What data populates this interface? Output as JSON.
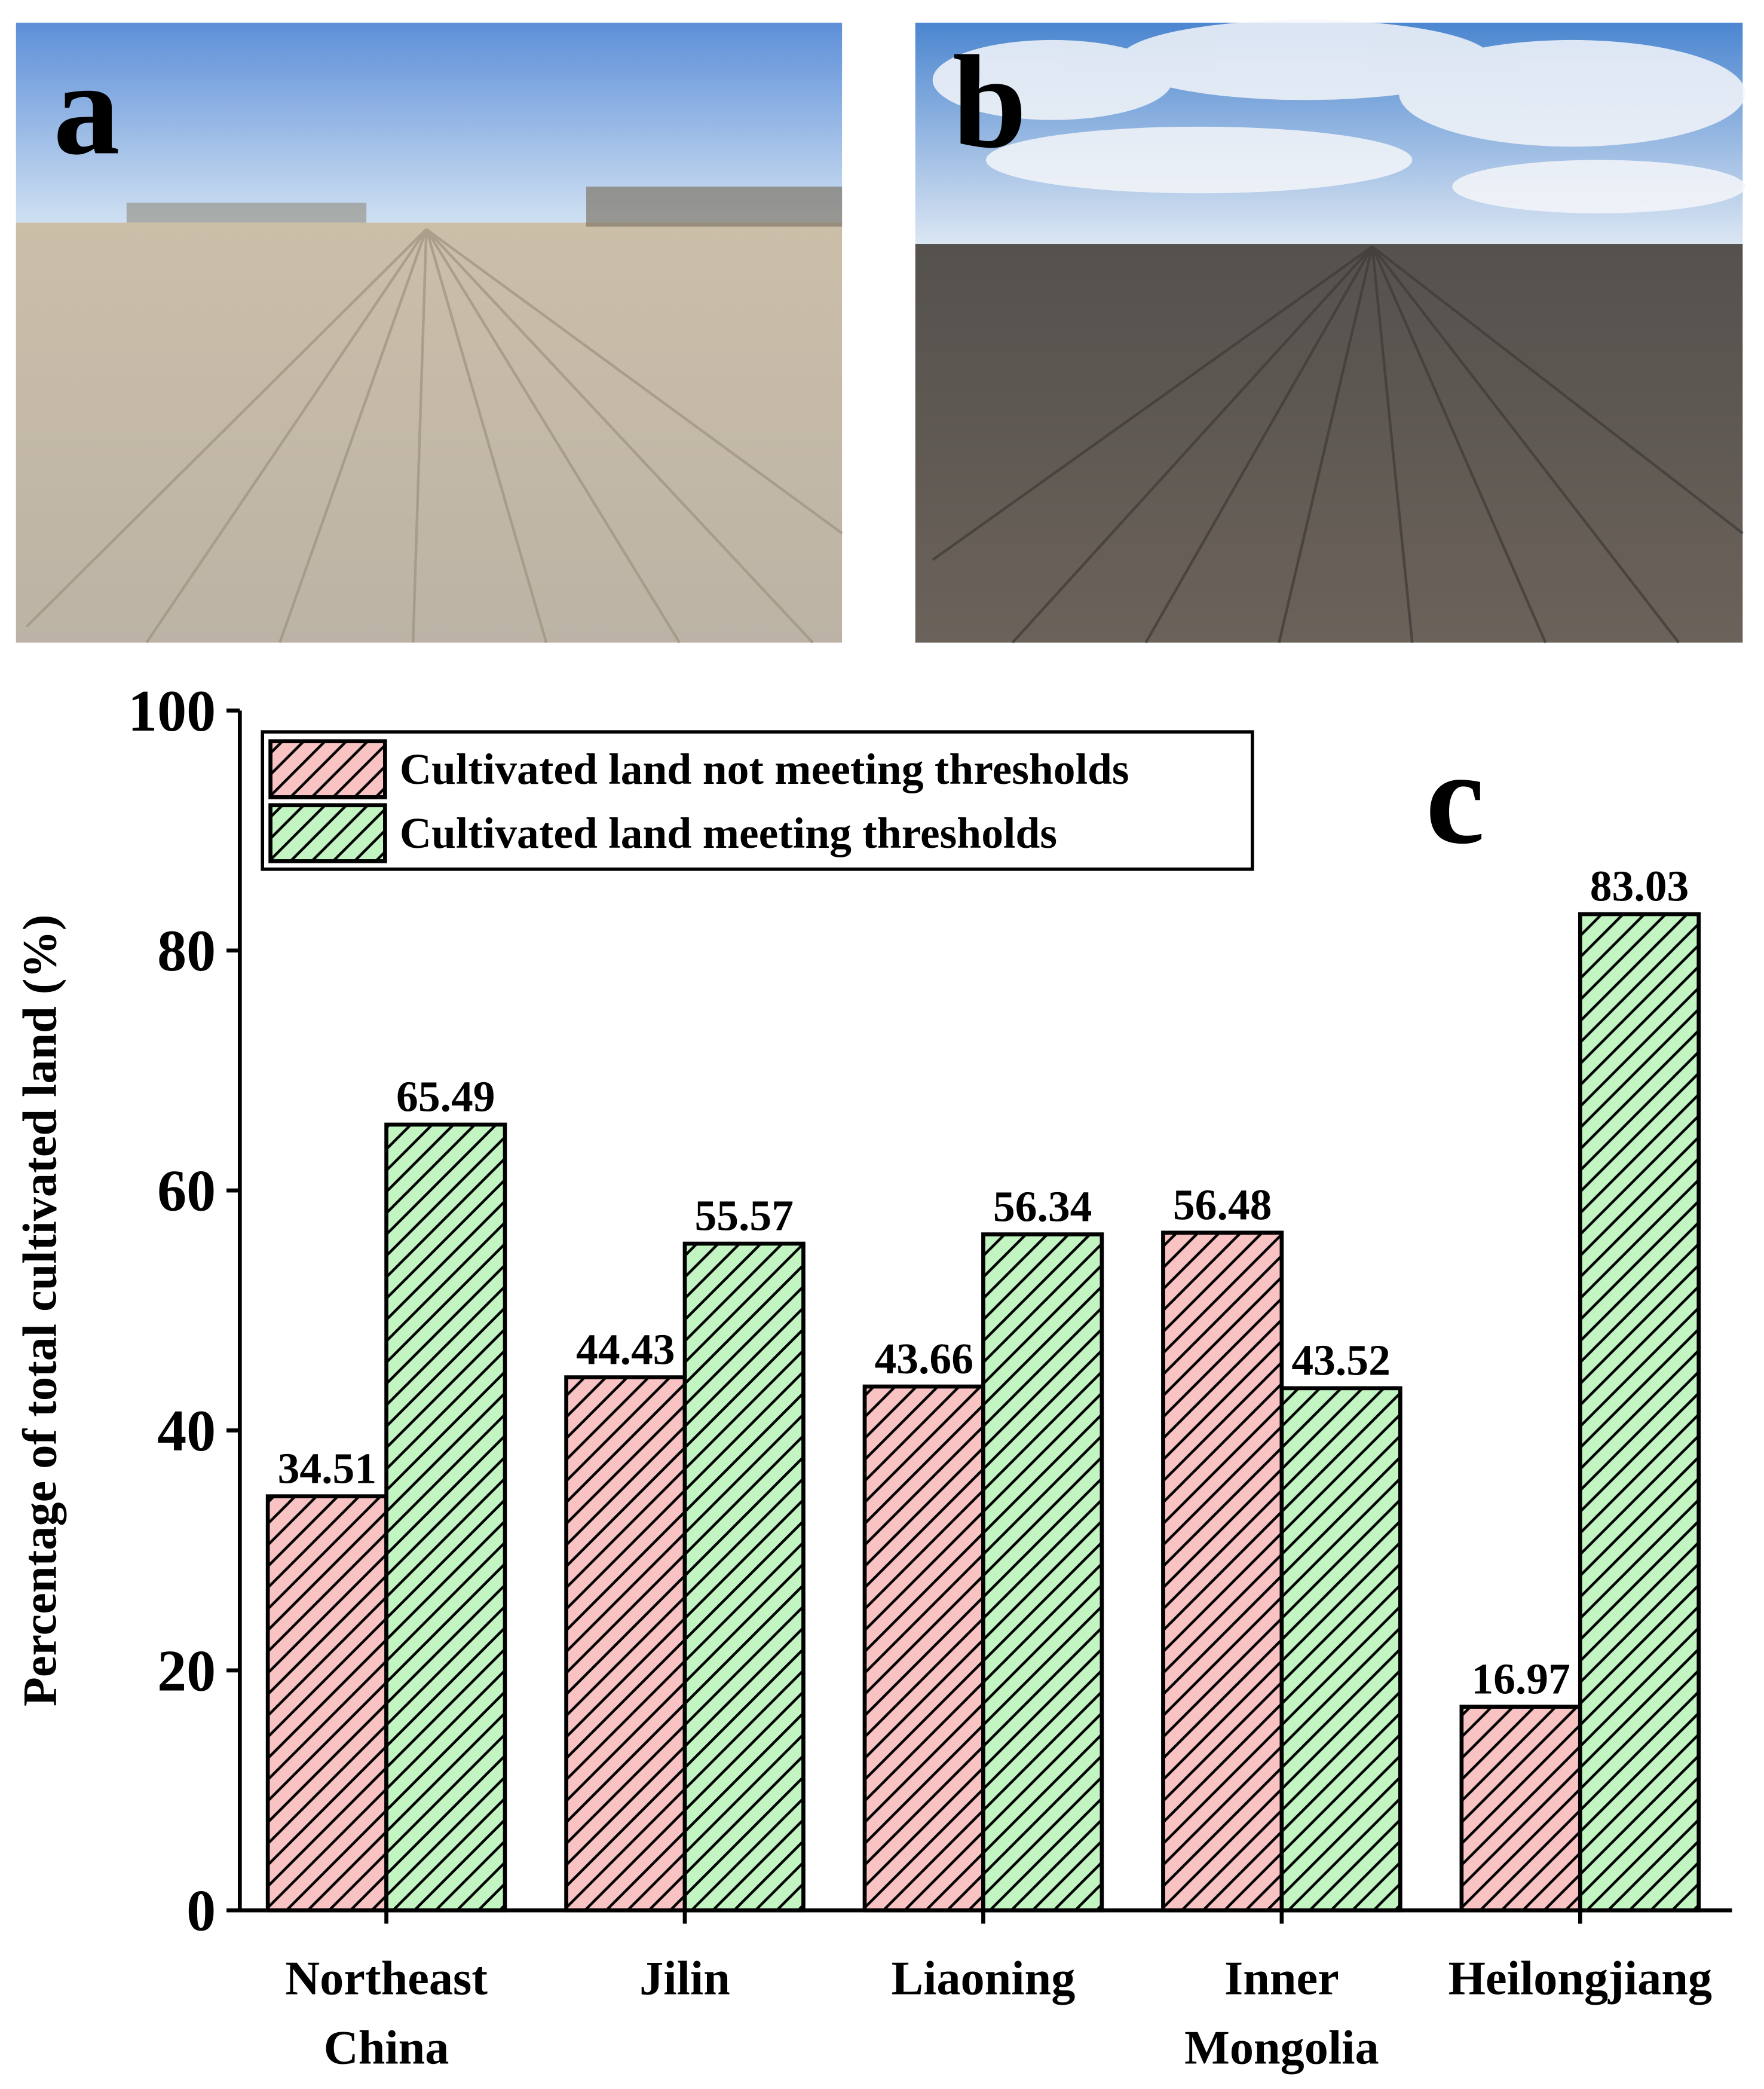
{
  "photos": [
    {
      "label": "a"
    },
    {
      "label": "b"
    }
  ],
  "chart_data": {
    "type": "bar",
    "panel_label": "c",
    "y_label": "Percentage of total cultivated land (%)",
    "categories": [
      "Northeast China",
      "Jilin",
      "Liaoning",
      "Inner Mongolia",
      "Heilongjiang"
    ],
    "series": [
      {
        "name": "Cultivated land not meeting thresholds",
        "color": "#f9c3c3",
        "values": [
          34.51,
          44.43,
          43.66,
          56.48,
          16.97
        ]
      },
      {
        "name": "Cultivated land meeting thresholds",
        "color": "#c3f5c3",
        "values": [
          65.49,
          55.57,
          56.34,
          43.52,
          83.03
        ]
      }
    ],
    "hatch": true,
    "ylim": [
      0,
      100
    ],
    "yticks": [
      0,
      20,
      40,
      60,
      80,
      100
    ],
    "legend": "upper left"
  }
}
